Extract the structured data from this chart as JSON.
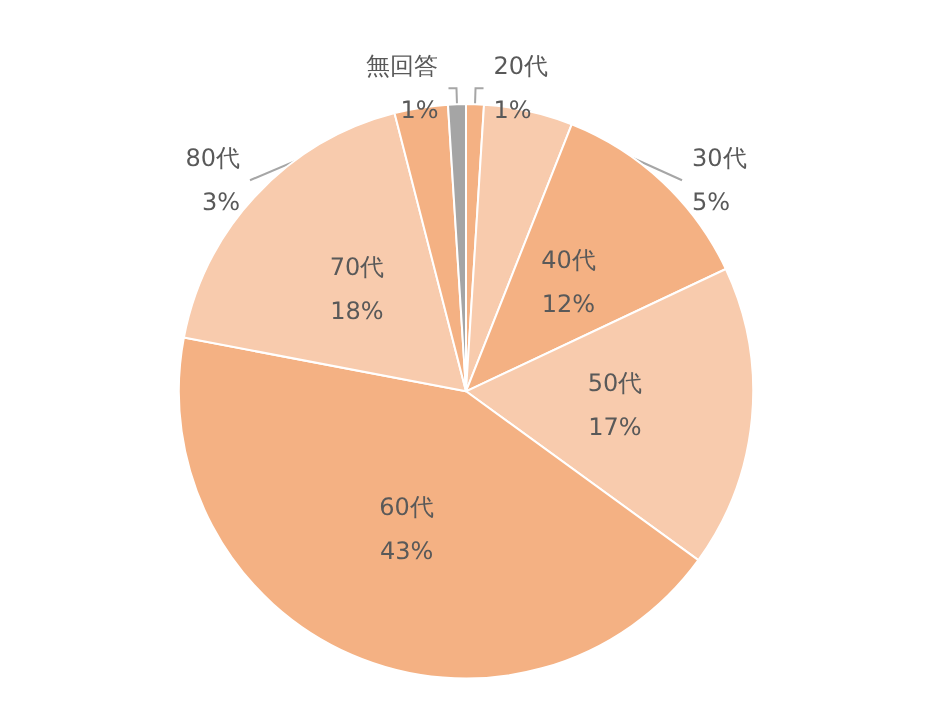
{
  "chart_data": {
    "type": "pie",
    "categories": [
      "20代",
      "30代",
      "40代",
      "50代",
      "60代",
      "70代",
      "80代",
      "無回答"
    ],
    "values": [
      1,
      5,
      12,
      17,
      43,
      18,
      3,
      1
    ],
    "value_labels": [
      "1%",
      "5%",
      "12%",
      "17%",
      "43%",
      "18%",
      "3%",
      "1%"
    ],
    "colors": [
      "#f4b183",
      "#f8cbad",
      "#f4b183",
      "#f8cbad",
      "#f4b183",
      "#f8cbad",
      "#f4b183",
      "#a5a5a5"
    ],
    "legend": false
  }
}
